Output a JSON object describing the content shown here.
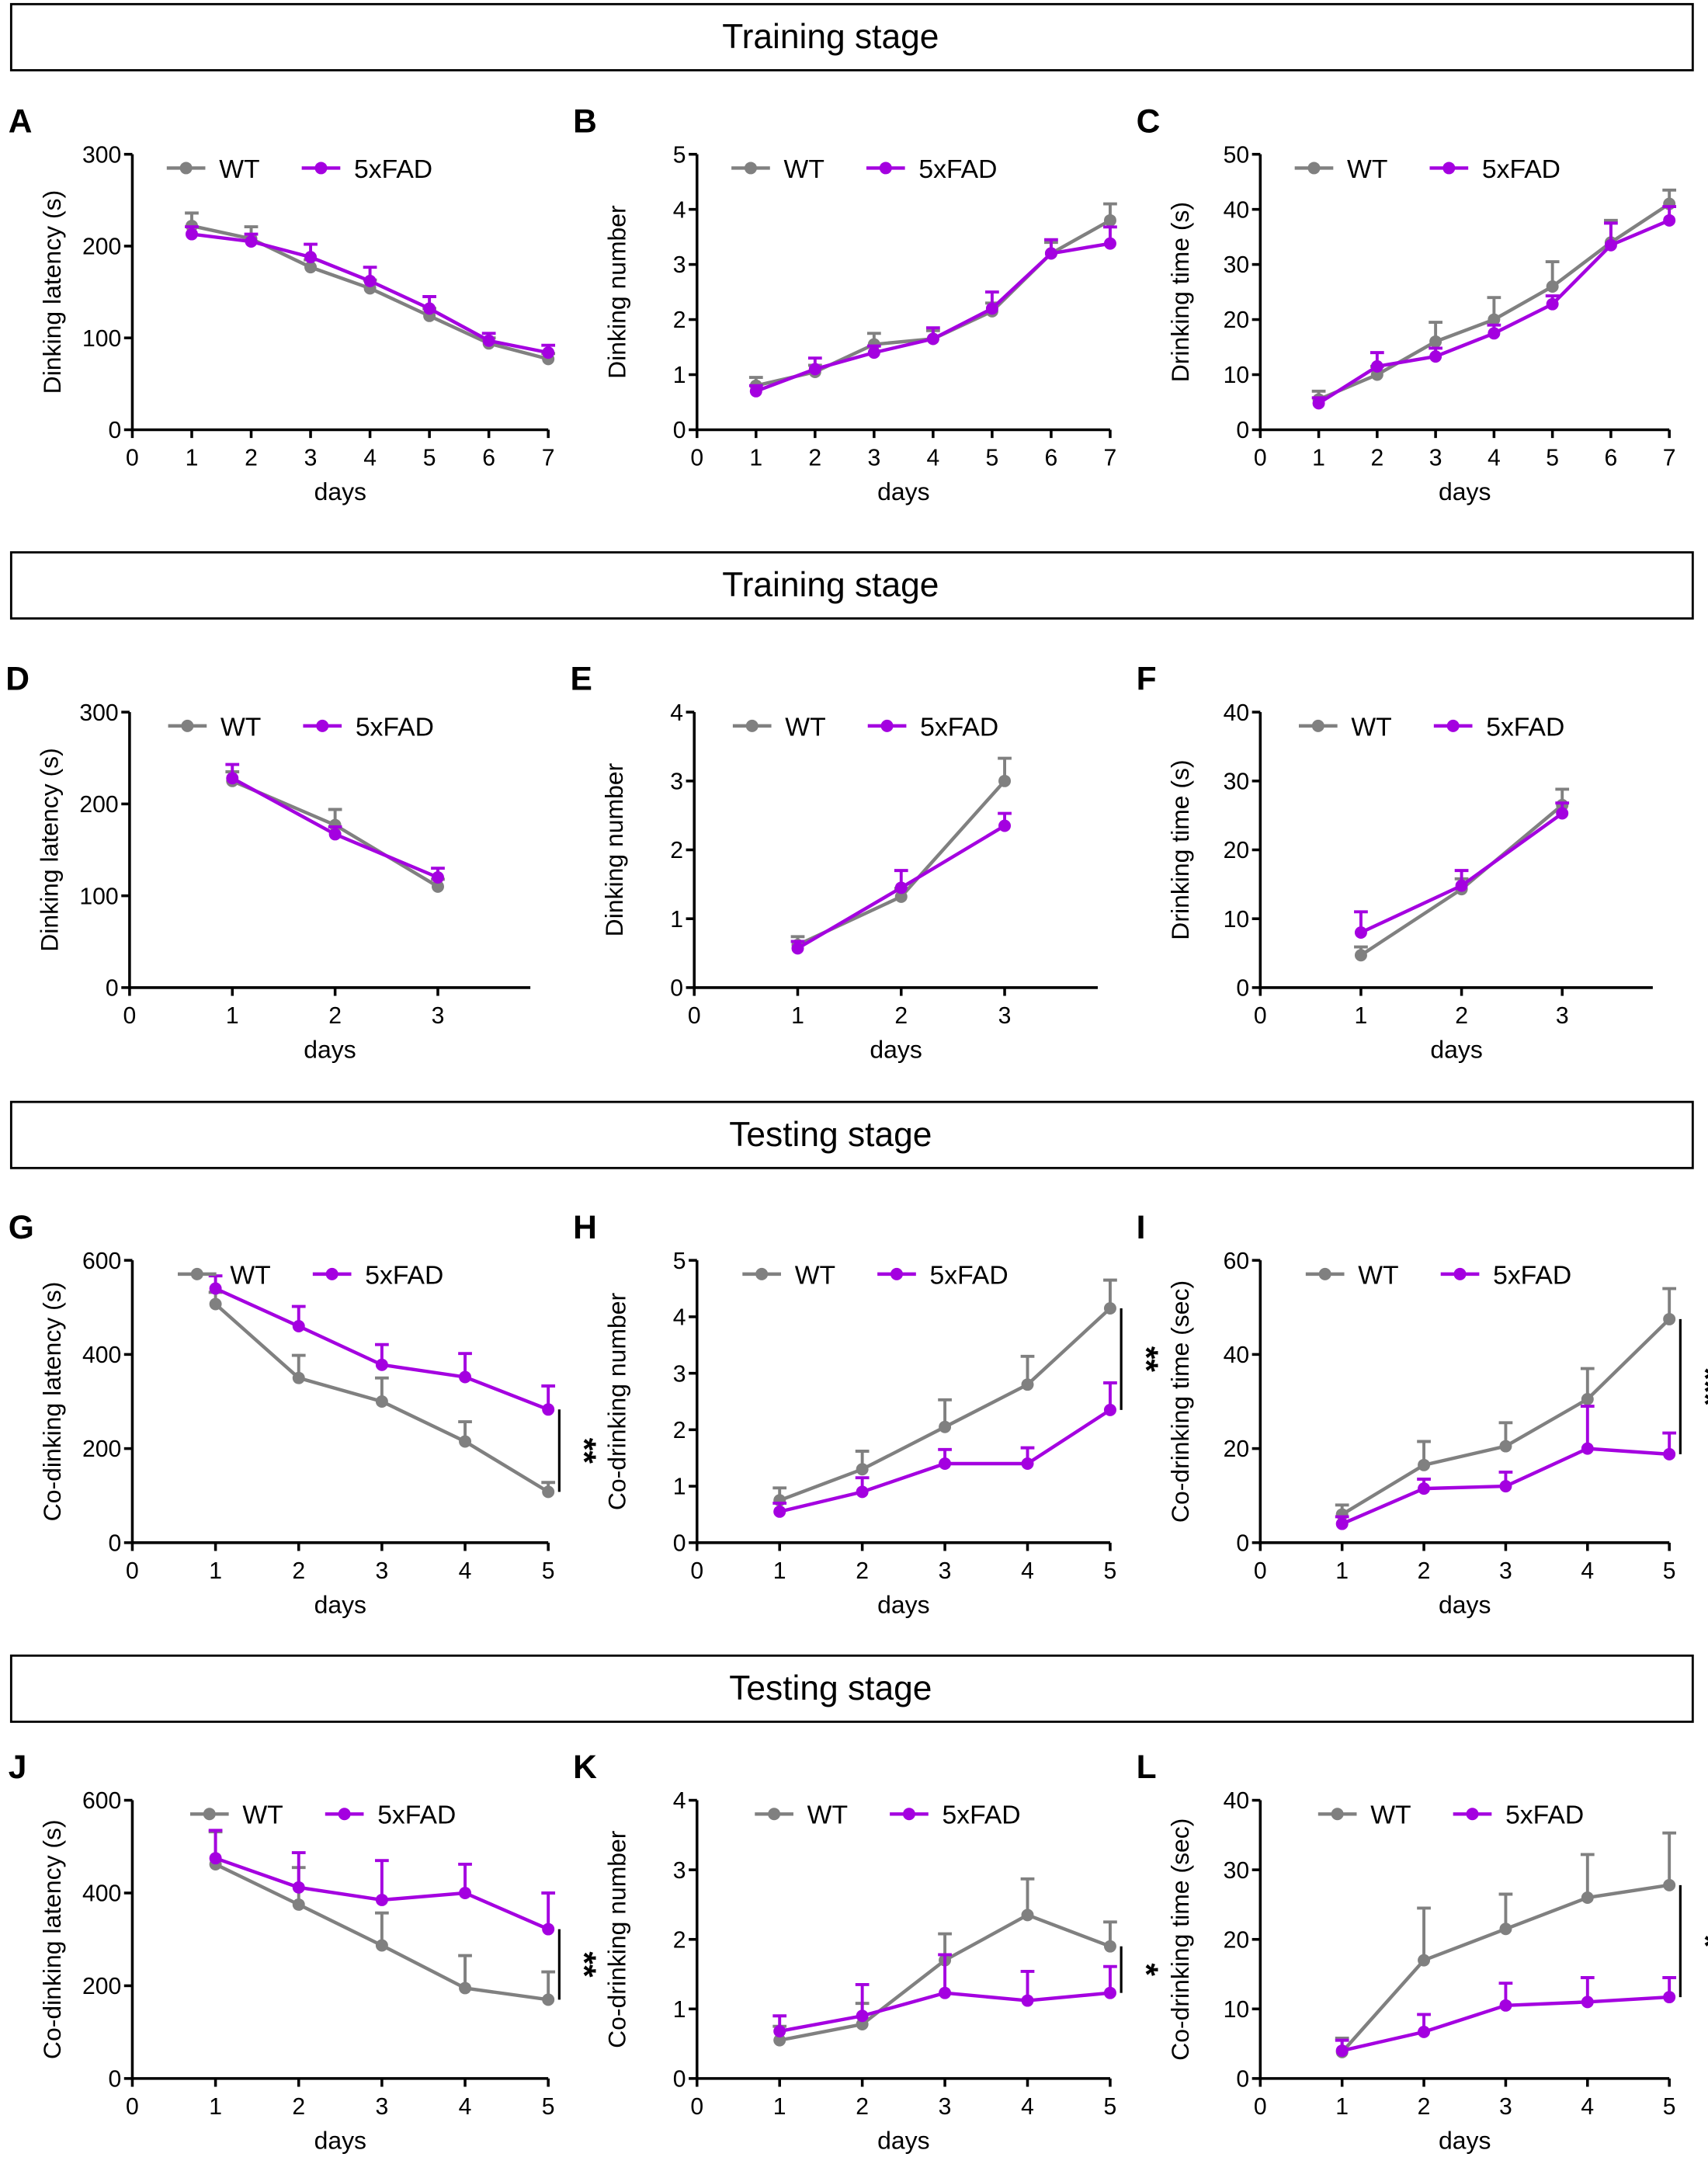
{
  "colors": {
    "WT": "#808080",
    "5xFAD": "#a400e0",
    "axis": "#000000"
  },
  "section_headers": [
    "Training stage",
    "Training stage",
    "Testing stage",
    "Testing stage"
  ],
  "legend": [
    "WT",
    "5xFAD"
  ],
  "chart_data": [
    {
      "panel": "A",
      "type": "line",
      "xlabel": "days",
      "ylabel": "Dinking latency (s)",
      "xlim": [
        0,
        7
      ],
      "ylim": [
        0,
        300
      ],
      "xticks": [
        0,
        1,
        2,
        3,
        4,
        5,
        6,
        7
      ],
      "yticks": [
        0,
        100,
        200,
        300
      ],
      "x": [
        1,
        2,
        3,
        4,
        5,
        6,
        7
      ],
      "series": [
        {
          "name": "WT",
          "values": [
            222,
            208,
            177,
            154,
            124,
            94,
            77
          ],
          "error": [
            14,
            13,
            8,
            9,
            8,
            6,
            6
          ]
        },
        {
          "name": "5xFAD",
          "values": [
            213,
            205,
            188,
            162,
            132,
            97,
            84
          ],
          "error": [
            8,
            8,
            14,
            15,
            13,
            8,
            8
          ]
        }
      ],
      "significance": ""
    },
    {
      "panel": "B",
      "type": "line",
      "xlabel": "days",
      "ylabel": "Dinking number",
      "xlim": [
        0,
        7
      ],
      "ylim": [
        0,
        5
      ],
      "xticks": [
        0,
        1,
        2,
        3,
        4,
        5,
        6,
        7
      ],
      "yticks": [
        0,
        1,
        2,
        3,
        4,
        5
      ],
      "x": [
        1,
        2,
        3,
        4,
        5,
        6,
        7
      ],
      "series": [
        {
          "name": "WT",
          "values": [
            0.8,
            1.05,
            1.55,
            1.65,
            2.15,
            3.2,
            3.8
          ],
          "error": [
            0.15,
            0.12,
            0.2,
            0.15,
            0.15,
            0.2,
            0.3
          ]
        },
        {
          "name": "5xFAD",
          "values": [
            0.7,
            1.1,
            1.4,
            1.65,
            2.2,
            3.2,
            3.38
          ],
          "error": [
            0.1,
            0.2,
            0.12,
            0.2,
            0.3,
            0.25,
            0.3
          ]
        }
      ],
      "significance": ""
    },
    {
      "panel": "C",
      "type": "line",
      "xlabel": "days",
      "ylabel": "Drinking time (s)",
      "xlim": [
        0,
        7
      ],
      "ylim": [
        0,
        50
      ],
      "xticks": [
        0,
        1,
        2,
        3,
        4,
        5,
        6,
        7
      ],
      "yticks": [
        0,
        10,
        20,
        30,
        40,
        50
      ],
      "x": [
        1,
        2,
        3,
        4,
        5,
        6,
        7
      ],
      "series": [
        {
          "name": "WT",
          "values": [
            5.5,
            10,
            16,
            20,
            26,
            34,
            41
          ],
          "error": [
            1.5,
            1.5,
            3.5,
            4,
            4.5,
            4,
            2.5
          ]
        },
        {
          "name": "5xFAD",
          "values": [
            4.8,
            11.5,
            13.3,
            17.5,
            22.8,
            33.5,
            38
          ],
          "error": [
            1,
            2.5,
            1.5,
            1.5,
            1.5,
            4,
            2.5
          ]
        }
      ],
      "significance": ""
    },
    {
      "panel": "D",
      "type": "line",
      "xlabel": "days",
      "ylabel": "Dinking latency (s)",
      "xlim": [
        0,
        3.9
      ],
      "ylim": [
        0,
        300
      ],
      "xticks": [
        0,
        1,
        2,
        3
      ],
      "yticks": [
        0,
        100,
        200,
        300
      ],
      "x": [
        1,
        2,
        3
      ],
      "series": [
        {
          "name": "WT",
          "values": [
            225,
            177,
            110
          ],
          "error": [
            10,
            17,
            8
          ]
        },
        {
          "name": "5xFAD",
          "values": [
            228,
            167,
            120
          ],
          "error": [
            15,
            8,
            10
          ]
        }
      ],
      "significance": ""
    },
    {
      "panel": "E",
      "type": "line",
      "xlabel": "days",
      "ylabel": "Dinking number",
      "xlim": [
        0,
        3.9
      ],
      "ylim": [
        0,
        4
      ],
      "xticks": [
        0,
        1,
        2,
        3
      ],
      "yticks": [
        0,
        1,
        2,
        3,
        4
      ],
      "x": [
        1,
        2,
        3
      ],
      "series": [
        {
          "name": "WT",
          "values": [
            0.62,
            1.32,
            3.0
          ],
          "error": [
            0.12,
            0.12,
            0.33
          ]
        },
        {
          "name": "5xFAD",
          "values": [
            0.57,
            1.45,
            2.35
          ],
          "error": [
            0.1,
            0.25,
            0.18
          ]
        }
      ],
      "significance": ""
    },
    {
      "panel": "F",
      "type": "line",
      "xlabel": "days",
      "ylabel": "Drinking time (s)",
      "xlim": [
        0,
        3.9
      ],
      "ylim": [
        0,
        40
      ],
      "xticks": [
        0,
        1,
        2,
        3
      ],
      "yticks": [
        0,
        10,
        20,
        30,
        40
      ],
      "x": [
        1,
        2,
        3
      ],
      "series": [
        {
          "name": "WT",
          "values": [
            4.7,
            14.3,
            26.5
          ],
          "error": [
            1.2,
            1.5,
            2.3
          ]
        },
        {
          "name": "5xFAD",
          "values": [
            8,
            14.8,
            25.3
          ],
          "error": [
            3,
            2.2,
            1.5
          ]
        }
      ],
      "significance": ""
    },
    {
      "panel": "G",
      "type": "line",
      "xlabel": "days",
      "ylabel": "Co-dinking latency (s)",
      "xlim": [
        0,
        5
      ],
      "ylim": [
        0,
        600
      ],
      "xticks": [
        0,
        1,
        2,
        3,
        4,
        5
      ],
      "yticks": [
        0,
        200,
        400,
        600
      ],
      "x": [
        1,
        2,
        3,
        4,
        5
      ],
      "series": [
        {
          "name": "WT",
          "values": [
            507,
            350,
            300,
            215,
            108
          ],
          "error": [
            25,
            48,
            50,
            42,
            20
          ]
        },
        {
          "name": "5xFAD",
          "values": [
            540,
            460,
            378,
            352,
            283
          ],
          "error": [
            27,
            42,
            43,
            50,
            50
          ]
        }
      ],
      "significance": "**"
    },
    {
      "panel": "H",
      "type": "line",
      "xlabel": "days",
      "ylabel": "Co-drinking number",
      "xlim": [
        0,
        5
      ],
      "ylim": [
        0,
        5
      ],
      "xticks": [
        0,
        1,
        2,
        3,
        4,
        5
      ],
      "yticks": [
        0,
        1,
        2,
        3,
        4,
        5
      ],
      "x": [
        1,
        2,
        3,
        4,
        5
      ],
      "series": [
        {
          "name": "WT",
          "values": [
            0.75,
            1.3,
            2.05,
            2.8,
            4.15
          ],
          "error": [
            0.22,
            0.32,
            0.48,
            0.5,
            0.5
          ]
        },
        {
          "name": "5xFAD",
          "values": [
            0.55,
            0.9,
            1.4,
            1.4,
            2.35
          ],
          "error": [
            0.15,
            0.25,
            0.25,
            0.28,
            0.48
          ]
        }
      ],
      "significance": "**"
    },
    {
      "panel": "I",
      "type": "line",
      "xlabel": "days",
      "ylabel": "Co-drinking time (sec)",
      "xlim": [
        0,
        5
      ],
      "ylim": [
        0,
        60
      ],
      "xticks": [
        0,
        1,
        2,
        3,
        4,
        5
      ],
      "yticks": [
        0,
        20,
        40,
        60
      ],
      "x": [
        1,
        2,
        3,
        4,
        5
      ],
      "series": [
        {
          "name": "WT",
          "values": [
            6,
            16.5,
            20.5,
            30.5,
            47.5
          ],
          "error": [
            2,
            5,
            5,
            6.5,
            6.5
          ]
        },
        {
          "name": "5xFAD",
          "values": [
            4,
            11.5,
            12,
            20,
            18.8
          ],
          "error": [
            1.5,
            2,
            3,
            9,
            4.5
          ]
        }
      ],
      "significance": "***"
    },
    {
      "panel": "J",
      "type": "line",
      "xlabel": "days",
      "ylabel": "Co-dinking latency (s)",
      "xlim": [
        0,
        5
      ],
      "ylim": [
        0,
        600
      ],
      "xticks": [
        0,
        1,
        2,
        3,
        4,
        5
      ],
      "yticks": [
        0,
        200,
        400,
        600
      ],
      "x": [
        1,
        2,
        3,
        4,
        5
      ],
      "series": [
        {
          "name": "WT",
          "values": [
            462,
            375,
            287,
            195,
            170
          ],
          "error": [
            70,
            80,
            70,
            70,
            60
          ]
        },
        {
          "name": "5xFAD",
          "values": [
            475,
            412,
            385,
            400,
            322
          ],
          "error": [
            60,
            75,
            85,
            62,
            78
          ]
        }
      ],
      "significance": "**"
    },
    {
      "panel": "K",
      "type": "line",
      "xlabel": "days",
      "ylabel": "Co-drinking number",
      "xlim": [
        0,
        5
      ],
      "ylim": [
        0,
        4
      ],
      "xticks": [
        0,
        1,
        2,
        3,
        4,
        5
      ],
      "yticks": [
        0,
        1,
        2,
        3,
        4
      ],
      "x": [
        1,
        2,
        3,
        4,
        5
      ],
      "series": [
        {
          "name": "WT",
          "values": [
            0.55,
            0.78,
            1.7,
            2.35,
            1.9
          ],
          "error": [
            0.2,
            0.3,
            0.38,
            0.52,
            0.35
          ]
        },
        {
          "name": "5xFAD",
          "values": [
            0.68,
            0.9,
            1.23,
            1.12,
            1.23
          ],
          "error": [
            0.22,
            0.45,
            0.55,
            0.42,
            0.38
          ]
        }
      ],
      "significance": "*"
    },
    {
      "panel": "L",
      "type": "line",
      "xlabel": "days",
      "ylabel": "Co-drinking time (sec)",
      "xlim": [
        0,
        5
      ],
      "ylim": [
        0,
        40
      ],
      "xticks": [
        0,
        1,
        2,
        3,
        4,
        5
      ],
      "yticks": [
        0,
        10,
        20,
        30,
        40
      ],
      "x": [
        1,
        2,
        3,
        4,
        5
      ],
      "series": [
        {
          "name": "WT",
          "values": [
            3.8,
            17,
            21.5,
            26,
            27.8
          ],
          "error": [
            2,
            7.5,
            5,
            6.2,
            7.5
          ]
        },
        {
          "name": "5xFAD",
          "values": [
            4,
            6.7,
            10.5,
            11,
            11.7
          ],
          "error": [
            1.5,
            2.5,
            3.2,
            3.5,
            2.8
          ]
        }
      ],
      "significance": "*"
    }
  ]
}
